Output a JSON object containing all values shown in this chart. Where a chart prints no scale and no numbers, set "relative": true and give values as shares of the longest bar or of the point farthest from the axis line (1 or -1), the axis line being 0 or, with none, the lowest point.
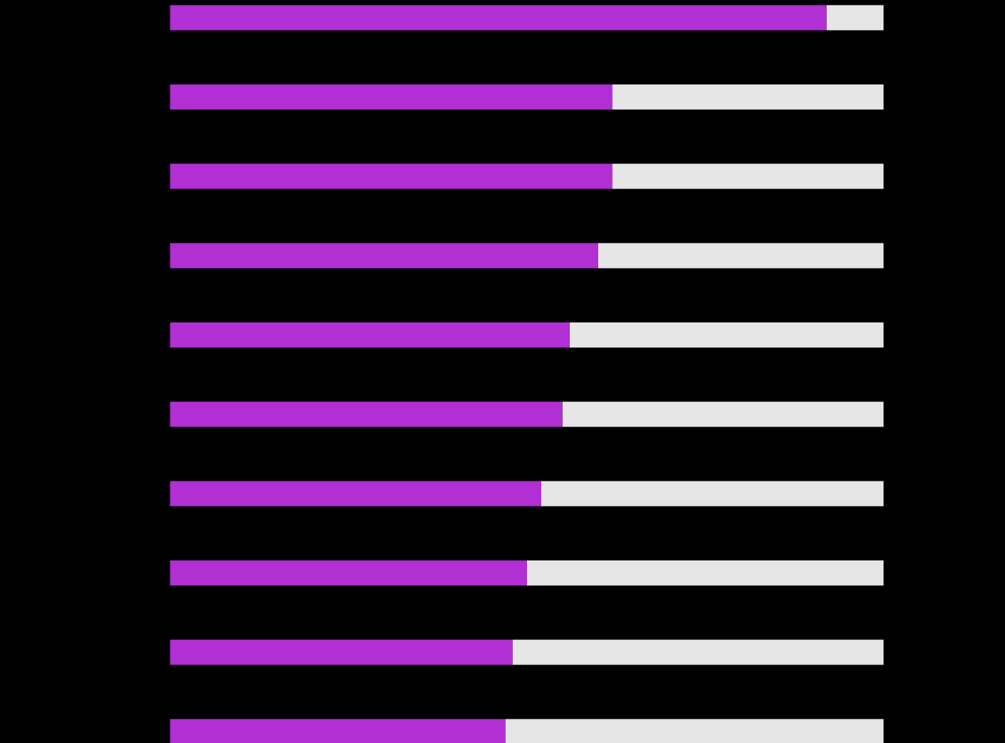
{
  "chart_data": {
    "type": "bar",
    "orientation": "horizontal",
    "relative": true,
    "stacked": true,
    "categories": [
      null,
      null,
      null,
      null,
      null,
      null,
      null,
      null,
      null,
      null
    ],
    "series": [
      {
        "color": "#b12fd3",
        "values": [
          0.92,
          0.62,
          0.62,
          0.6,
          0.56,
          0.55,
          0.52,
          0.5,
          0.48,
          0.47
        ]
      },
      {
        "color": "#e6e6e6",
        "values": [
          0.08,
          0.38,
          0.38,
          0.4,
          0.44,
          0.45,
          0.48,
          0.5,
          0.52,
          0.53
        ]
      }
    ]
  }
}
